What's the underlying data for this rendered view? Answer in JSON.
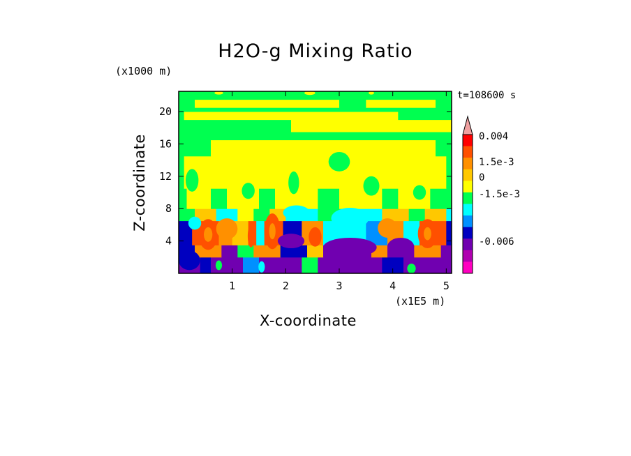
{
  "chart_data": {
    "type": "heatmap",
    "title": "H2O-g Mixing Ratio",
    "xlabel": "X-coordinate",
    "ylabel": "Z-coordinate",
    "x_unit": "(x1E5 m)",
    "y_unit": "(x1000 m)",
    "time_label": "t=108600 s",
    "xlim": [
      0,
      5.1
    ],
    "ylim": [
      0,
      22.5
    ],
    "x_ticks": [
      1,
      2,
      3,
      4,
      5
    ],
    "y_ticks": [
      4,
      8,
      12,
      16,
      20
    ],
    "grid": false,
    "colorbar": {
      "labels": [
        "0.004",
        "1.5e-3",
        "0",
        "-1.5e-3",
        "-0.006"
      ],
      "colors": [
        "#f0a0a0",
        "#ff0000",
        "#ff5000",
        "#ff9000",
        "#ffc800",
        "#ffff00",
        "#00ff50",
        "#00ffff",
        "#0090ff",
        "#0000c0",
        "#7000b0",
        "#b000b0",
        "#ff00c0"
      ]
    },
    "rows": [
      {
        "z0": 0,
        "z1": 2,
        "segments": [
          [
            0,
            0.4,
            "#7000b0"
          ],
          [
            0.4,
            0.6,
            "#0000c0"
          ],
          [
            0.6,
            1.2,
            "#7000b0"
          ],
          [
            1.2,
            1.5,
            "#0090ff"
          ],
          [
            1.5,
            2.3,
            "#7000b0"
          ],
          [
            2.3,
            2.6,
            "#00ff50"
          ],
          [
            2.6,
            3.8,
            "#7000b0"
          ],
          [
            3.8,
            4.2,
            "#0000c0"
          ],
          [
            4.2,
            5.1,
            "#7000b0"
          ]
        ]
      },
      {
        "z0": 2,
        "z1": 3.5,
        "segments": [
          [
            0,
            0.3,
            "#0000c0"
          ],
          [
            0.3,
            0.8,
            "#ff9000"
          ],
          [
            0.8,
            1.1,
            "#7000b0"
          ],
          [
            1.1,
            1.4,
            "#00ff50"
          ],
          [
            1.4,
            1.9,
            "#ff9000"
          ],
          [
            1.9,
            2.4,
            "#0000c0"
          ],
          [
            2.4,
            2.7,
            "#ffc800"
          ],
          [
            2.7,
            3.6,
            "#7000b0"
          ],
          [
            3.6,
            3.9,
            "#ff9000"
          ],
          [
            3.9,
            4.4,
            "#7000b0"
          ],
          [
            4.4,
            4.9,
            "#ff9000"
          ],
          [
            4.9,
            5.1,
            "#7000b0"
          ]
        ]
      },
      {
        "z0": 3.5,
        "z1": 6.5,
        "segments": [
          [
            0,
            0.25,
            "#0000c0"
          ],
          [
            0.25,
            0.75,
            "#ff5000"
          ],
          [
            0.75,
            1.0,
            "#ff9000"
          ],
          [
            1.0,
            1.3,
            "#ffc800"
          ],
          [
            1.3,
            1.45,
            "#ff5000"
          ],
          [
            1.45,
            1.6,
            "#00ffff"
          ],
          [
            1.6,
            1.95,
            "#ff5000"
          ],
          [
            1.95,
            2.3,
            "#0000c0"
          ],
          [
            2.3,
            2.7,
            "#ff9000"
          ],
          [
            2.7,
            3.5,
            "#00ffff"
          ],
          [
            3.5,
            3.9,
            "#0090ff"
          ],
          [
            3.9,
            4.2,
            "#ff9000"
          ],
          [
            4.2,
            4.5,
            "#00ffff"
          ],
          [
            4.5,
            5.0,
            "#ff5000"
          ],
          [
            5.0,
            5.1,
            "#0000c0"
          ]
        ]
      },
      {
        "z0": 6.5,
        "z1": 8,
        "segments": [
          [
            0,
            0.3,
            "#00ff50"
          ],
          [
            0.3,
            0.7,
            "#ffc800"
          ],
          [
            0.7,
            1.1,
            "#00ffff"
          ],
          [
            1.1,
            1.4,
            "#ffff00"
          ],
          [
            1.4,
            1.7,
            "#00ff50"
          ],
          [
            1.7,
            2.0,
            "#ffc800"
          ],
          [
            2.0,
            2.6,
            "#00ffff"
          ],
          [
            2.6,
            3.2,
            "#00ff50"
          ],
          [
            3.2,
            3.8,
            "#00ffff"
          ],
          [
            3.8,
            4.3,
            "#ffc800"
          ],
          [
            4.3,
            4.6,
            "#00ff50"
          ],
          [
            4.6,
            5.0,
            "#ffc800"
          ],
          [
            5.0,
            5.1,
            "#00ffff"
          ]
        ]
      },
      {
        "z0": 8,
        "z1": 10.5,
        "segments": [
          [
            0,
            0.15,
            "#00ff50"
          ],
          [
            0.15,
            0.6,
            "#ffff00"
          ],
          [
            0.6,
            0.9,
            "#00ff50"
          ],
          [
            0.9,
            1.5,
            "#ffff00"
          ],
          [
            1.5,
            1.8,
            "#00ff50"
          ],
          [
            1.8,
            2.6,
            "#ffff00"
          ],
          [
            2.6,
            3.0,
            "#00ff50"
          ],
          [
            3.0,
            3.8,
            "#ffff00"
          ],
          [
            3.8,
            4.1,
            "#00ff50"
          ],
          [
            4.1,
            4.7,
            "#ffff00"
          ],
          [
            4.7,
            5.1,
            "#00ff50"
          ]
        ]
      },
      {
        "z0": 10.5,
        "z1": 14.5,
        "segments": [
          [
            0,
            0.1,
            "#00ff50"
          ],
          [
            0.1,
            5.0,
            "#ffff00"
          ],
          [
            5.0,
            5.1,
            "#00ff50"
          ]
        ]
      },
      {
        "z0": 14.5,
        "z1": 16.5,
        "segments": [
          [
            0,
            0.6,
            "#00ff50"
          ],
          [
            0.6,
            4.8,
            "#ffff00"
          ],
          [
            4.8,
            5.1,
            "#00ff50"
          ]
        ]
      },
      {
        "z0": 16.5,
        "z1": 17.5,
        "segments": [
          [
            0,
            5.1,
            "#00ff50"
          ]
        ]
      },
      {
        "z0": 17.5,
        "z1": 19,
        "segments": [
          [
            0,
            2.1,
            "#00ff50"
          ],
          [
            2.1,
            4.2,
            "#ffff00"
          ],
          [
            4.2,
            5.1,
            "#ffff00"
          ]
        ]
      },
      {
        "z0": 19,
        "z1": 20,
        "segments": [
          [
            0,
            0.1,
            "#00ff50"
          ],
          [
            0.1,
            4.1,
            "#ffff00"
          ],
          [
            4.1,
            5.1,
            "#00ff50"
          ]
        ]
      },
      {
        "z0": 20,
        "z1": 20.5,
        "segments": [
          [
            0,
            5.1,
            "#00ff50"
          ]
        ]
      },
      {
        "z0": 20.5,
        "z1": 21.5,
        "segments": [
          [
            0,
            0.3,
            "#00ff50"
          ],
          [
            0.3,
            3.0,
            "#ffff00"
          ],
          [
            3.0,
            3.5,
            "#00ff50"
          ],
          [
            3.5,
            4.8,
            "#ffff00"
          ],
          [
            4.8,
            5.1,
            "#00ff50"
          ]
        ]
      },
      {
        "z0": 21.5,
        "z1": 22.5,
        "segments": [
          [
            0,
            5.1,
            "#00ff50"
          ]
        ]
      }
    ],
    "cells": [
      {
        "x": 0.55,
        "z": 4.8,
        "rx": 0.18,
        "rz": 1.9,
        "color": "#ff5000"
      },
      {
        "x": 0.55,
        "z": 4.8,
        "rx": 0.08,
        "rz": 0.9,
        "color": "#ff9000"
      },
      {
        "x": 1.75,
        "z": 5.2,
        "rx": 0.15,
        "rz": 2.2,
        "color": "#ff5000"
      },
      {
        "x": 1.75,
        "z": 5.2,
        "rx": 0.06,
        "rz": 1.0,
        "color": "#ff9000"
      },
      {
        "x": 4.65,
        "z": 4.9,
        "rx": 0.18,
        "rz": 1.8,
        "color": "#ff5000"
      },
      {
        "x": 4.65,
        "z": 4.9,
        "rx": 0.07,
        "rz": 0.8,
        "color": "#ff9000"
      },
      {
        "x": 0.9,
        "z": 5.5,
        "rx": 0.2,
        "rz": 1.3,
        "color": "#ff9000"
      },
      {
        "x": 2.55,
        "z": 4.5,
        "rx": 0.12,
        "rz": 1.2,
        "color": "#ff5000"
      },
      {
        "x": 3.9,
        "z": 5.6,
        "rx": 0.18,
        "rz": 1.2,
        "color": "#ff9000"
      },
      {
        "x": 1.35,
        "z": 4.6,
        "rx": 0.06,
        "rz": 1.4,
        "color": "#ff5000"
      },
      {
        "x": 2.1,
        "z": 4.0,
        "rx": 0.25,
        "rz": 0.9,
        "color": "#7000b0"
      },
      {
        "x": 3.2,
        "z": 3.2,
        "rx": 0.5,
        "rz": 1.2,
        "color": "#7000b0"
      },
      {
        "x": 4.15,
        "z": 3.3,
        "rx": 0.25,
        "rz": 1.1,
        "color": "#7000b0"
      },
      {
        "x": 0.2,
        "z": 1.6,
        "rx": 0.2,
        "rz": 1.2,
        "color": "#0000c0"
      },
      {
        "x": 3.2,
        "z": 6.8,
        "rx": 0.35,
        "rz": 1.3,
        "color": "#00ffff"
      },
      {
        "x": 0.3,
        "z": 6.2,
        "rx": 0.12,
        "rz": 0.8,
        "color": "#00ffff"
      },
      {
        "x": 2.2,
        "z": 7.5,
        "rx": 0.25,
        "rz": 0.9,
        "color": "#00ffff"
      },
      {
        "x": 3.0,
        "z": 13.8,
        "rx": 0.2,
        "rz": 1.2,
        "color": "#00ff50"
      },
      {
        "x": 0.25,
        "z": 11.5,
        "rx": 0.12,
        "rz": 1.4,
        "color": "#00ff50"
      },
      {
        "x": 2.15,
        "z": 11.2,
        "rx": 0.1,
        "rz": 1.4,
        "color": "#00ff50"
      },
      {
        "x": 3.6,
        "z": 10.8,
        "rx": 0.15,
        "rz": 1.2,
        "color": "#00ff50"
      },
      {
        "x": 1.3,
        "z": 10.2,
        "rx": 0.12,
        "rz": 1.0,
        "color": "#00ff50"
      },
      {
        "x": 4.5,
        "z": 10.0,
        "rx": 0.12,
        "rz": 0.9,
        "color": "#00ff50"
      },
      {
        "x": 0.75,
        "z": 1.0,
        "rx": 0.06,
        "rz": 0.6,
        "color": "#00ff50"
      },
      {
        "x": 1.55,
        "z": 0.8,
        "rx": 0.06,
        "rz": 0.7,
        "color": "#00ffff"
      },
      {
        "x": 4.35,
        "z": 0.6,
        "rx": 0.08,
        "rz": 0.6,
        "color": "#00ff50"
      },
      {
        "x": 2.45,
        "z": 22.3,
        "rx": 0.1,
        "rz": 0.25,
        "color": "#ffff00"
      },
      {
        "x": 3.6,
        "z": 22.3,
        "rx": 0.05,
        "rz": 0.2,
        "color": "#ffff00"
      },
      {
        "x": 0.75,
        "z": 22.3,
        "rx": 0.08,
        "rz": 0.2,
        "color": "#ffff00"
      }
    ]
  }
}
